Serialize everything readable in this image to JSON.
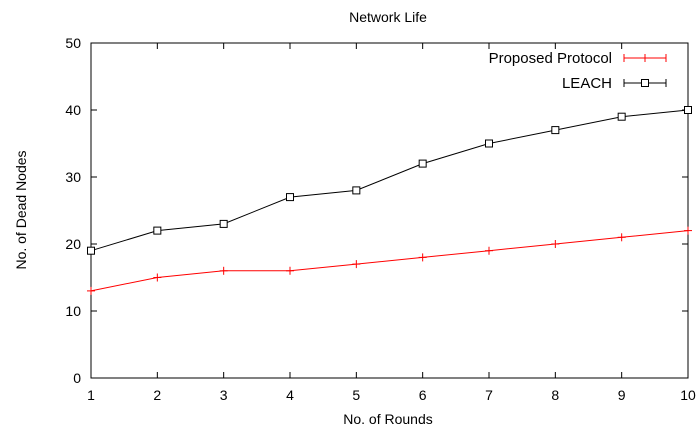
{
  "chart_data": {
    "type": "line",
    "title": "Network Life",
    "xlabel": "No. of Rounds",
    "ylabel": "No. of Dead Nodes",
    "x": [
      1,
      2,
      3,
      4,
      5,
      6,
      7,
      8,
      9,
      10
    ],
    "xlim": [
      1,
      10
    ],
    "ylim": [
      0,
      50
    ],
    "yticks": [
      0,
      10,
      20,
      30,
      40,
      50
    ],
    "xticks": [
      1,
      2,
      3,
      4,
      5,
      6,
      7,
      8,
      9,
      10
    ],
    "grid": false,
    "legend_position": "top-right",
    "series": [
      {
        "name": "Proposed Protocol",
        "color": "#ff0000",
        "marker": "plus",
        "values": [
          13,
          15,
          16,
          16,
          17,
          18,
          19,
          20,
          21,
          22
        ]
      },
      {
        "name": "LEACH",
        "color": "#000000",
        "marker": "square",
        "values": [
          19,
          22,
          23,
          27,
          28,
          32,
          35,
          37,
          39,
          40
        ]
      }
    ]
  }
}
